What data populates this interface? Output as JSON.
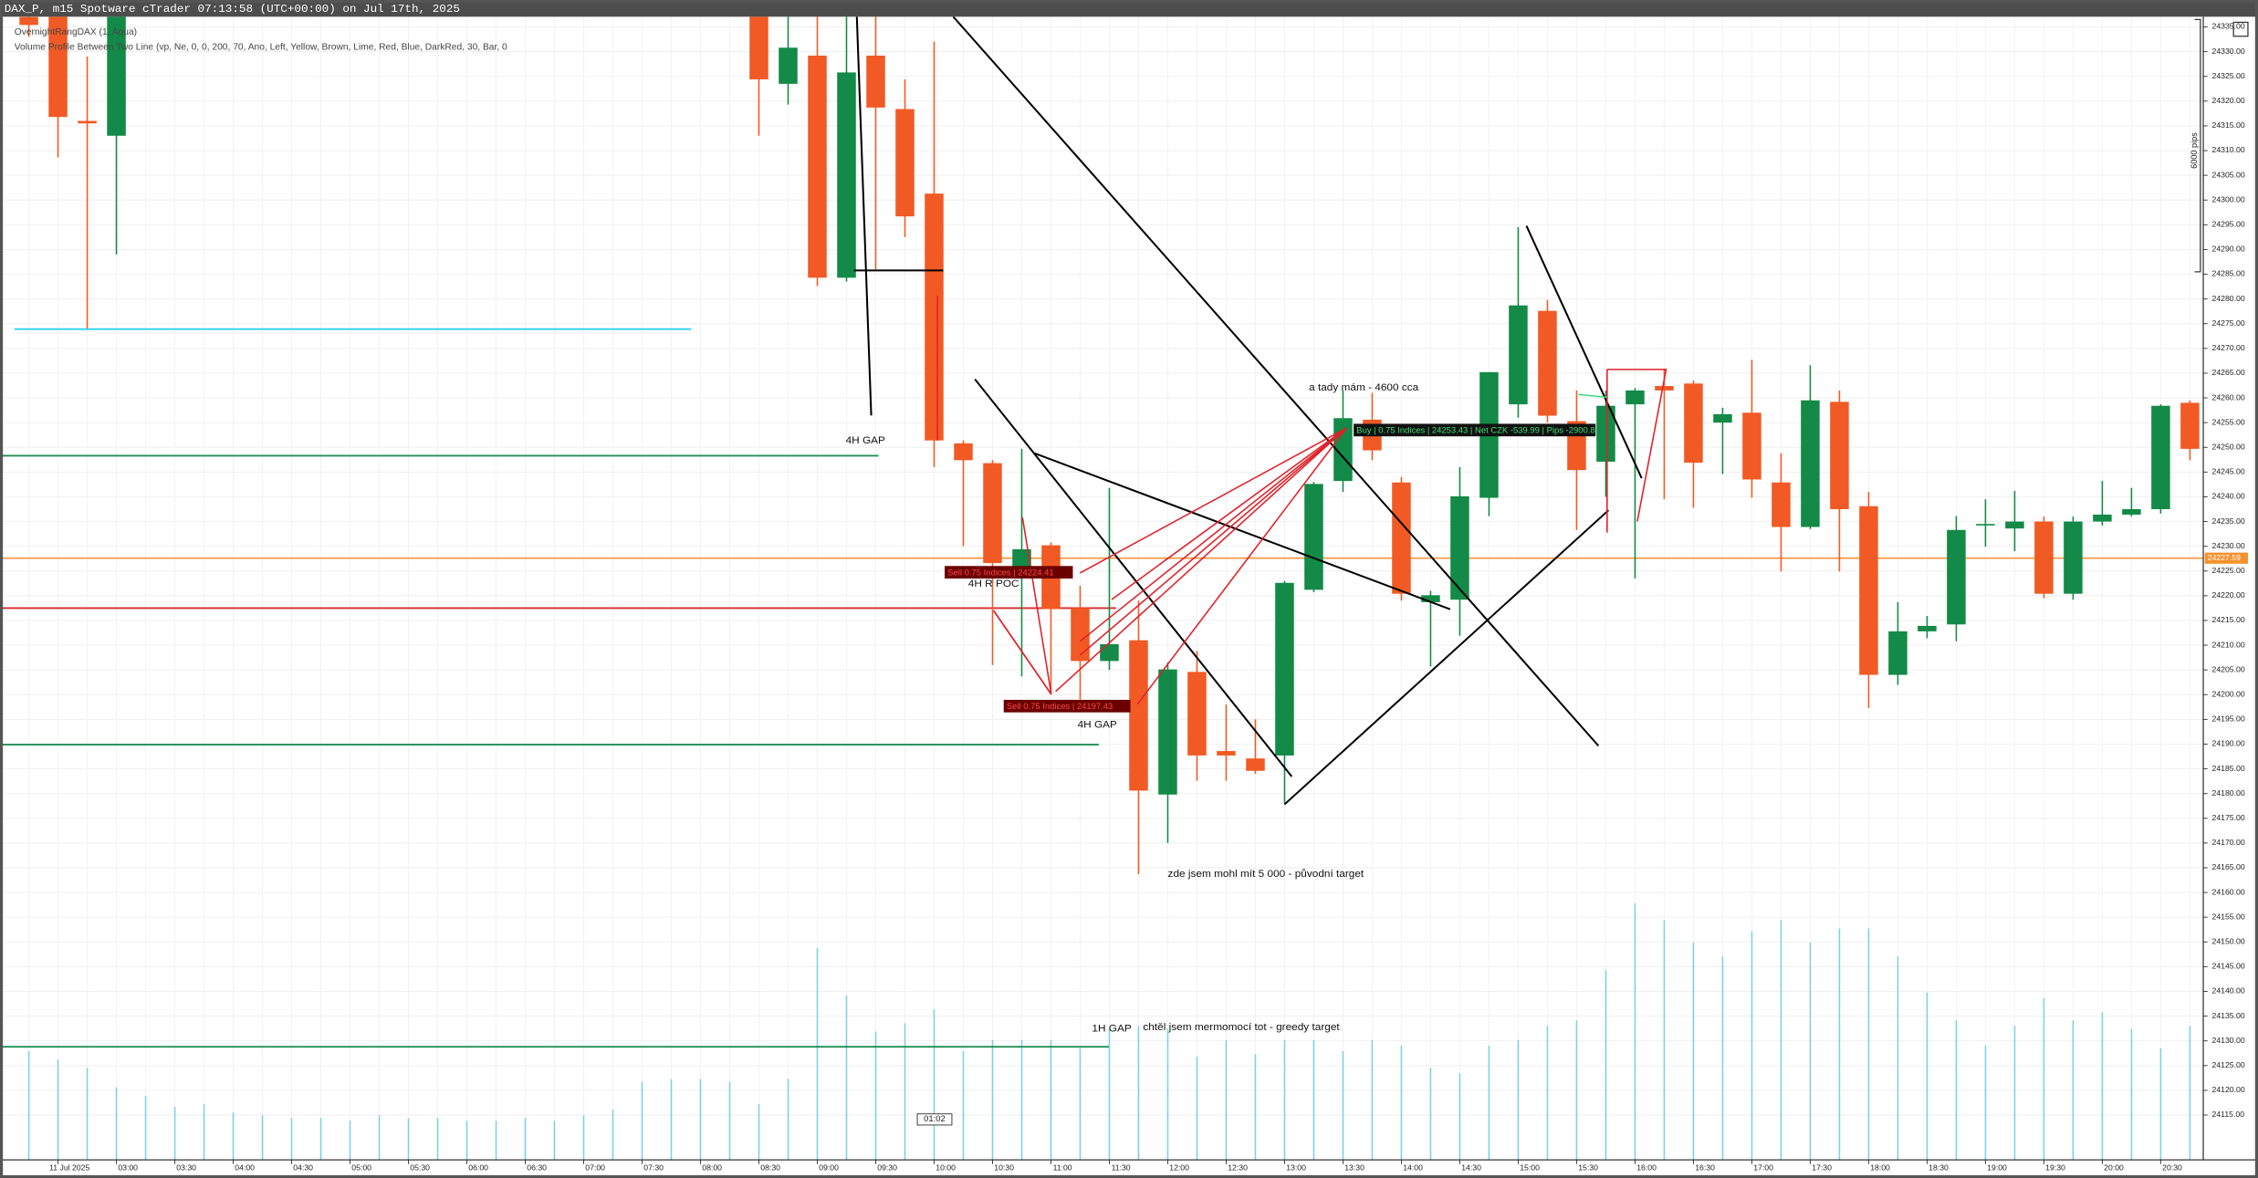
{
  "chart_data": {
    "type": "candlestick",
    "title": "DAX_P, m15 Spotware cTrader 07:13:58 (UTC+00:00) on Jul 17th, 2025",
    "indicators": [
      "OvernightRangDAX (1, Aqua)",
      "Volume Profile Between Two Line (vp, Ne, 0, 0, 200, 70, Ano, Left, Yellow, Brown, Lime, Red, Blue, DarkRed, 30, Bar, 0"
    ],
    "up_color": "#138a47",
    "down_color": "#f15a24",
    "volume_color": "#7fd0e4",
    "grid": true,
    "categories": [
      null,
      "11 Jul 2025",
      null,
      "03:00",
      null,
      "03:30",
      null,
      "04:00",
      null,
      "04:30",
      null,
      "05:00",
      null,
      "05:30",
      null,
      "06:00",
      null,
      "06:30",
      null,
      "07:00",
      null,
      "07:30",
      null,
      "08:00",
      null,
      "08:30",
      null,
      "09:00",
      null,
      "09:30",
      null,
      "10:00",
      null,
      "10:30",
      null,
      "11:00",
      null,
      "11:30",
      null,
      "12:00",
      null,
      "12:30",
      null,
      "13:00",
      null,
      "13:30",
      null,
      "14:00",
      null,
      "14:30",
      null,
      "15:00",
      null,
      "15:30",
      null,
      "16:00",
      null,
      "16:30",
      null,
      "17:00",
      null,
      "17:30",
      null,
      "18:00",
      null,
      "18:30",
      null,
      "19:00",
      null,
      "19:30",
      null,
      "20:00",
      null,
      "20:30",
      null
    ],
    "open": [
      24337,
      24338,
      24316,
      24313,
      null,
      null,
      null,
      null,
      null,
      null,
      null,
      null,
      null,
      null,
      null,
      null,
      null,
      null,
      null,
      null,
      null,
      null,
      null,
      null,
      null,
      24338,
      24323.5,
      24329.2,
      24284.3,
      24329.2,
      24318.4,
      24301.3,
      24250.8,
      24246.8,
      24223.5,
      24230.2,
      24217.5,
      24206.8,
      24211,
      24179.8,
      24204.6,
      24188.6,
      24187.1,
      24187.7,
      24221.2,
      24243.2,
      24255.6,
      24242.9,
      24218.7,
      24219.2,
      24239.8,
      24258.7,
      24277.6,
      24255.3,
      24247.1,
      24258.7,
      24262.4,
      24262.9,
      24255,
      24257,
      24242.9,
      24233.9,
      24259.2,
      24238.1,
      24204,
      24212.8,
      24214.2,
      24234.2,
      24233.6,
      24235,
      24220.4,
      24235,
      24236.4,
      24237.5,
      24259
    ],
    "high": [
      24340,
      24340,
      24329,
      24340,
      null,
      null,
      null,
      null,
      null,
      null,
      null,
      null,
      null,
      null,
      null,
      null,
      null,
      null,
      null,
      null,
      null,
      null,
      null,
      null,
      null,
      24340,
      24338,
      24338,
      24338,
      24338,
      24324.4,
      24332,
      24251.4,
      24247.4,
      24249.7,
      24230.8,
      24222,
      24241.8,
      24219,
      24206.5,
      24208.8,
      24198,
      24195,
      24223,
      24243,
      24261.5,
      24261,
      24244,
      24221,
      24246,
      24265.2,
      24294.5,
      24279.8,
      24261.5,
      24261.5,
      24262,
      24265.7,
      24263.5,
      24258,
      24267.7,
      24248.8,
      24266.6,
      24261.5,
      24241,
      24218.7,
      24215.9,
      24236.1,
      24239.5,
      24241.2,
      24236,
      24236,
      24243.2,
      24241.8,
      24258.7,
      24259.5
    ],
    "low": [
      24333,
      24308.6,
      24274,
      24289,
      null,
      null,
      null,
      null,
      null,
      null,
      null,
      null,
      null,
      null,
      null,
      null,
      null,
      null,
      null,
      null,
      null,
      null,
      null,
      null,
      null,
      24313,
      24319.3,
      24282.6,
      24283.5,
      24286,
      24292.5,
      24246,
      24230,
      24206,
      24203.7,
      24200,
      24199,
      24205,
      24163.7,
      24170,
      24182.6,
      24182.6,
      24184,
      24178,
      24220.7,
      24241,
      24247.4,
      24219,
      24205.7,
      24211.9,
      24236.1,
      24256,
      24255,
      24233.3,
      24240,
      24223.5,
      24239.5,
      24237.8,
      24244.6,
      24239.8,
      24224.9,
      24233.5,
      24224.9,
      24197.3,
      24202,
      24211.4,
      24210.8,
      24229.9,
      24229,
      24219.5,
      24219.2,
      24234.2,
      24236,
      24236.6,
      24247.4
    ],
    "close": [
      24335.4,
      24316.8,
      24315.5,
      24338,
      null,
      null,
      null,
      null,
      null,
      null,
      null,
      null,
      null,
      null,
      null,
      null,
      null,
      null,
      null,
      null,
      null,
      null,
      null,
      null,
      null,
      24324.4,
      24330.8,
      24284.3,
      24325.8,
      24318.7,
      24296.7,
      24251.4,
      24247.4,
      24226.6,
      24229.4,
      24217.3,
      24206.8,
      24210.2,
      24180.6,
      24205.1,
      24187.7,
      24187.7,
      24184.6,
      24222.6,
      24242.6,
      24255.9,
      24249.4,
      24220.4,
      24220.1,
      24240.1,
      24265.2,
      24278.7,
      24256.4,
      24245.4,
      24258.4,
      24261.5,
      24261.5,
      24246.9,
      24256.7,
      24243.5,
      24233.9,
      24259.5,
      24237.5,
      24204,
      24212.8,
      24213.9,
      24233.3,
      24234.5,
      24235,
      24220.4,
      24235,
      24236.4,
      24237.5,
      24258.4,
      24249.7
    ],
    "volume": [
      78,
      72,
      66,
      52,
      46,
      38,
      40,
      34,
      32,
      30,
      30,
      28,
      32,
      30,
      30,
      28,
      28,
      30,
      28,
      32,
      36,
      56,
      58,
      58,
      56,
      40,
      58,
      152,
      118,
      92,
      98,
      108,
      78,
      86,
      86,
      86,
      80,
      94,
      96,
      94,
      74,
      86,
      76,
      86,
      86,
      78,
      86,
      82,
      66,
      62,
      82,
      86,
      96,
      100,
      136,
      184,
      172,
      156,
      146,
      164,
      172,
      156,
      166,
      166,
      146,
      120,
      100,
      82,
      96,
      116,
      100,
      106,
      94,
      80,
      96
    ],
    "ylim": [
      24106.5,
      24336.5
    ],
    "yticks": [
      {
        "value": 24115,
        "label": "24115.00"
      },
      {
        "value": 24120,
        "label": "24120.00"
      },
      {
        "value": 24125,
        "label": "24125.00"
      },
      {
        "value": 24130,
        "label": "24130.00"
      },
      {
        "value": 24135,
        "label": "24135.00"
      },
      {
        "value": 24140,
        "label": "24140.00"
      },
      {
        "value": 24145,
        "label": "24145.00"
      },
      {
        "value": 24150,
        "label": "24150.00"
      },
      {
        "value": 24155,
        "label": "24155.00"
      },
      {
        "value": 24160,
        "label": "24160.00"
      },
      {
        "value": 24165,
        "label": "24165.00"
      },
      {
        "value": 24170,
        "label": "24170.00"
      },
      {
        "value": 24175,
        "label": "24175.00"
      },
      {
        "value": 24180,
        "label": "24180.00"
      },
      {
        "value": 24185,
        "label": "24185.00"
      },
      {
        "value": 24190,
        "label": "24190.00"
      },
      {
        "value": 24195,
        "label": "24195.00"
      },
      {
        "value": 24200,
        "label": "24200.00"
      },
      {
        "value": 24205,
        "label": "24205.00"
      },
      {
        "value": 24210,
        "label": "24210.00"
      },
      {
        "value": 24215,
        "label": "24215.00"
      },
      {
        "value": 24220,
        "label": "24220.00"
      },
      {
        "value": 24225,
        "label": "24225.00"
      },
      {
        "value": 24230,
        "label": "24230.00"
      },
      {
        "value": 24235,
        "label": "24235.00"
      },
      {
        "value": 24240,
        "label": "24240.00"
      },
      {
        "value": 24245,
        "label": "24245.00"
      },
      {
        "value": 24250,
        "label": "24250.00"
      },
      {
        "value": 24255,
        "label": "24255.00"
      },
      {
        "value": 24260,
        "label": "24260.00"
      },
      {
        "value": 24265,
        "label": "24265.00"
      },
      {
        "value": 24270,
        "label": "24270.00"
      },
      {
        "value": 24275,
        "label": "24275.00"
      },
      {
        "value": 24280,
        "label": "24280.00"
      },
      {
        "value": 24285,
        "label": "24285.00"
      },
      {
        "value": 24290,
        "label": "24290.00"
      },
      {
        "value": 24295,
        "label": "24295.00"
      },
      {
        "value": 24300,
        "label": "24300.00"
      },
      {
        "value": 24305,
        "label": "24305.00"
      },
      {
        "value": 24310,
        "label": "24310.00"
      },
      {
        "value": 24315,
        "label": "24315.00"
      },
      {
        "value": 24320,
        "label": "24320.00"
      },
      {
        "value": 24325,
        "label": "24325.00"
      },
      {
        "value": 24330,
        "label": "24330.00"
      },
      {
        "value": 24335,
        "label": "24335.00"
      }
    ],
    "levels": [
      {
        "price": 24273.9,
        "color": "#29d4f0"
      },
      {
        "price": 24248.3,
        "color": "#1f8f55"
      },
      {
        "price": 24227.59,
        "color": "#f5a050"
      },
      {
        "price": 24217.5,
        "color": "#d9282c"
      },
      {
        "price": 24189.9,
        "color": "#1f8f55"
      },
      {
        "price": 24128.8,
        "color": "#1f8f55"
      }
    ],
    "current_price": 24227.59,
    "timer": "01:02",
    "pips_label": "6000 pips",
    "annotations": [
      "4H GAP",
      "4H R POC",
      "4H GAP",
      "a tady mám  - 4600 cca",
      "zde jsem mohl mít 5 000 - původní target",
      "1H GAP",
      "chtěl jsem mermomocí tot - greedy target"
    ],
    "trade_labels": [
      "Sell 0.75 Indices | 24224.41",
      "Sell 0.75 Indices | 24197.43",
      "Buy | 0.75 Indices | 24253.43 | Net CZK -539.99 | Pips -2900.8"
    ]
  }
}
